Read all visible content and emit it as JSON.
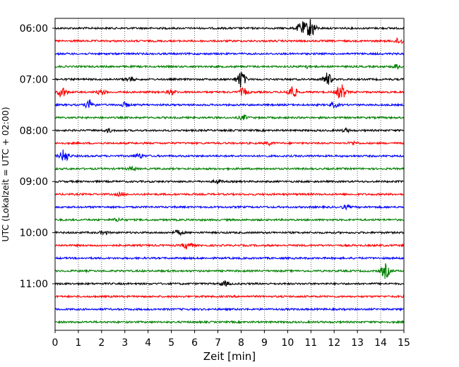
{
  "chart_data": {
    "type": "line",
    "title": "",
    "xlabel": "Zeit  [min]",
    "ylabel": "UTC (Lokalzeit = UTC + 02:00)",
    "xlim": [
      0,
      15
    ],
    "x_ticks": [
      "0",
      "1",
      "2",
      "3",
      "4",
      "5",
      "6",
      "7",
      "8",
      "9",
      "10",
      "11",
      "12",
      "13",
      "14",
      "15"
    ],
    "y_ticks": [
      "06:00",
      "07:00",
      "08:00",
      "09:00",
      "10:00",
      "11:00"
    ],
    "grid": "vertical dotted",
    "trace_interval_minutes": 15,
    "first_trace": "06:00",
    "colors": [
      "#000000",
      "#ff0000",
      "#0000ff",
      "#008000"
    ],
    "traces": [
      {
        "start": "06:00",
        "color": "#000000",
        "events": [
          {
            "t": 10.6,
            "amp": 9
          },
          {
            "t": 11.0,
            "amp": 14
          }
        ]
      },
      {
        "start": "06:15",
        "color": "#ff0000",
        "events": [
          {
            "t": 14.8,
            "amp": 4
          }
        ]
      },
      {
        "start": "06:30",
        "color": "#0000ff",
        "events": []
      },
      {
        "start": "06:45",
        "color": "#008000",
        "events": [
          {
            "t": 10.8,
            "amp": 2
          },
          {
            "t": 14.7,
            "amp": 3
          }
        ]
      },
      {
        "start": "07:00",
        "color": "#000000",
        "events": [
          {
            "t": 3.2,
            "amp": 3
          },
          {
            "t": 8.0,
            "amp": 12
          },
          {
            "t": 11.7,
            "amp": 9
          }
        ]
      },
      {
        "start": "07:15",
        "color": "#ff0000",
        "events": [
          {
            "t": 0.3,
            "amp": 7
          },
          {
            "t": 2.0,
            "amp": 3
          },
          {
            "t": 5.0,
            "amp": 3
          },
          {
            "t": 8.1,
            "amp": 5
          },
          {
            "t": 10.2,
            "amp": 9
          },
          {
            "t": 12.3,
            "amp": 11
          }
        ]
      },
      {
        "start": "07:30",
        "color": "#0000ff",
        "events": [
          {
            "t": 1.5,
            "amp": 6
          },
          {
            "t": 3.0,
            "amp": 3
          },
          {
            "t": 12.0,
            "amp": 3
          }
        ]
      },
      {
        "start": "07:45",
        "color": "#008000",
        "events": [
          {
            "t": 8.1,
            "amp": 3
          }
        ]
      },
      {
        "start": "08:00",
        "color": "#000000",
        "events": [
          {
            "t": 2.3,
            "amp": 2
          },
          {
            "t": 12.5,
            "amp": 2
          }
        ]
      },
      {
        "start": "08:15",
        "color": "#ff0000",
        "events": [
          {
            "t": 9.2,
            "amp": 2
          },
          {
            "t": 12.8,
            "amp": 2
          }
        ]
      },
      {
        "start": "08:30",
        "color": "#0000ff",
        "events": [
          {
            "t": 0.4,
            "amp": 9
          },
          {
            "t": 3.6,
            "amp": 3
          }
        ]
      },
      {
        "start": "08:45",
        "color": "#008000",
        "events": [
          {
            "t": 3.3,
            "amp": 2
          }
        ]
      },
      {
        "start": "09:00",
        "color": "#000000",
        "events": [
          {
            "t": 7.0,
            "amp": 2
          }
        ]
      },
      {
        "start": "09:15",
        "color": "#ff0000",
        "events": [
          {
            "t": 2.8,
            "amp": 2
          }
        ]
      },
      {
        "start": "09:30",
        "color": "#0000ff",
        "events": [
          {
            "t": 12.5,
            "amp": 2
          }
        ]
      },
      {
        "start": "09:45",
        "color": "#008000",
        "events": [
          {
            "t": 2.7,
            "amp": 2
          }
        ]
      },
      {
        "start": "10:00",
        "color": "#000000",
        "events": [
          {
            "t": 2.1,
            "amp": 2
          },
          {
            "t": 5.3,
            "amp": 3
          }
        ]
      },
      {
        "start": "10:15",
        "color": "#ff0000",
        "events": [
          {
            "t": 5.7,
            "amp": 5
          }
        ]
      },
      {
        "start": "10:30",
        "color": "#0000ff",
        "events": []
      },
      {
        "start": "10:45",
        "color": "#008000",
        "events": [
          {
            "t": 14.2,
            "amp": 10
          }
        ]
      },
      {
        "start": "11:00",
        "color": "#000000",
        "events": [
          {
            "t": 7.3,
            "amp": 3
          }
        ]
      },
      {
        "start": "11:15",
        "color": "#ff0000",
        "events": []
      },
      {
        "start": "11:30",
        "color": "#0000ff",
        "events": []
      },
      {
        "start": "11:45",
        "color": "#008000",
        "events": []
      }
    ]
  }
}
